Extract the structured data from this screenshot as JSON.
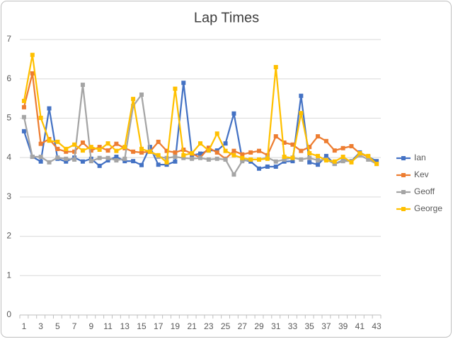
{
  "chart_data": {
    "type": "line",
    "title": "Lap Times",
    "categories": [
      1,
      null,
      3,
      null,
      5,
      null,
      7,
      null,
      9,
      null,
      11,
      null,
      13,
      null,
      15,
      null,
      17,
      null,
      19,
      null,
      21,
      null,
      23,
      null,
      25,
      null,
      27,
      null,
      29,
      null,
      31,
      null,
      33,
      null,
      35,
      null,
      37,
      null,
      39,
      null,
      41,
      null,
      43
    ],
    "series": [
      {
        "name": "Ian",
        "color": "#4472c4",
        "values": [
          4.67,
          4.02,
          3.9,
          5.25,
          3.97,
          3.9,
          4.0,
          3.9,
          3.97,
          3.79,
          3.93,
          4.02,
          3.91,
          3.91,
          3.81,
          4.27,
          3.82,
          3.82,
          3.9,
          5.9,
          4.06,
          4.1,
          4.18,
          4.18,
          4.36,
          5.12,
          3.95,
          3.9,
          3.72,
          3.77,
          3.77,
          3.9,
          3.91,
          5.57,
          3.88,
          3.82,
          4.04,
          3.84,
          3.93,
          3.91,
          4.13,
          4.02,
          3.91
        ]
      },
      {
        "name": "Kev",
        "color": "#ed7d31",
        "values": [
          5.28,
          6.14,
          4.35,
          4.47,
          4.22,
          4.15,
          4.15,
          4.38,
          4.18,
          4.27,
          4.18,
          4.35,
          4.24,
          4.15,
          4.13,
          4.15,
          4.4,
          4.17,
          4.13,
          4.2,
          4.1,
          4.0,
          4.25,
          4.13,
          3.97,
          4.17,
          4.08,
          4.13,
          4.17,
          4.06,
          4.54,
          4.38,
          4.33,
          4.17,
          4.27,
          4.54,
          4.42,
          4.18,
          4.24,
          4.29,
          4.11,
          4.02,
          3.84
        ]
      },
      {
        "name": "Geoff",
        "color": "#a5a5a5",
        "values": [
          5.03,
          4.02,
          4.02,
          3.88,
          4.0,
          3.97,
          3.95,
          5.85,
          3.91,
          3.99,
          3.99,
          3.93,
          3.97,
          5.31,
          5.6,
          4.15,
          4.02,
          3.99,
          4.02,
          3.99,
          3.97,
          3.99,
          3.95,
          3.97,
          3.95,
          3.57,
          3.91,
          3.95,
          3.95,
          4.0,
          3.9,
          3.95,
          4.0,
          3.95,
          3.99,
          3.93,
          3.95,
          3.84,
          3.91,
          3.91,
          4.06,
          3.95,
          3.84
        ]
      },
      {
        "name": "George",
        "color": "#ffc000",
        "values": [
          5.44,
          6.61,
          5.01,
          4.43,
          4.4,
          4.22,
          4.33,
          4.18,
          4.27,
          4.2,
          4.36,
          4.17,
          4.27,
          5.49,
          4.22,
          4.15,
          4.06,
          3.88,
          5.75,
          4.06,
          4.11,
          4.36,
          4.18,
          4.61,
          4.17,
          4.06,
          3.99,
          3.95,
          3.95,
          3.97,
          6.3,
          4.02,
          3.99,
          5.13,
          4.11,
          4.04,
          3.93,
          3.9,
          4.02,
          3.88,
          4.11,
          4.04,
          3.84
        ]
      }
    ],
    "ylim": [
      0,
      7
    ],
    "yticks": [
      0,
      1,
      2,
      3,
      4,
      5,
      6,
      7
    ],
    "grid": true,
    "legend": "right"
  }
}
